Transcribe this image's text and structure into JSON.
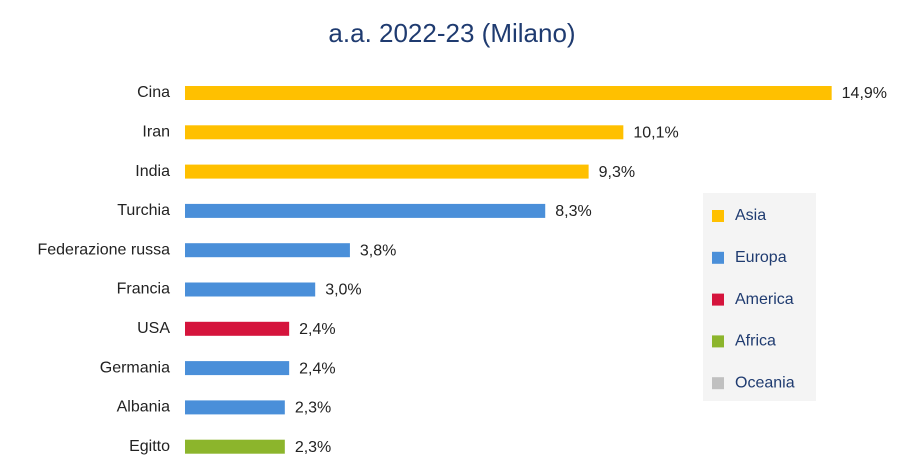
{
  "chart_data": {
    "type": "bar",
    "orientation": "horizontal",
    "title": "a.a. 2022-23 (Milano)",
    "categories": [
      "Cina",
      "Iran",
      "India",
      "Turchia",
      "Federazione russa",
      "Francia",
      "USA",
      "Germania",
      "Albania",
      "Egitto"
    ],
    "series": [
      {
        "name": "Asia",
        "color": "#ffc000",
        "values": [
          14.9,
          10.1,
          9.3,
          null,
          null,
          null,
          null,
          null,
          null,
          null
        ],
        "value_labels": [
          "14,9%",
          "10,1%",
          "9,3%",
          null,
          null,
          null,
          null,
          null,
          null,
          null
        ]
      },
      {
        "name": "Europa",
        "color": "#4a8fd9",
        "values": [
          null,
          null,
          null,
          8.3,
          3.8,
          3.0,
          null,
          2.4,
          2.3,
          null
        ],
        "value_labels": [
          null,
          null,
          null,
          "8,3%",
          "3,8%",
          "3,0%",
          null,
          "2,4%",
          "2,3%",
          null
        ]
      },
      {
        "name": "America",
        "color": "#d5143c",
        "values": [
          null,
          null,
          null,
          null,
          null,
          null,
          2.4,
          null,
          null,
          null
        ],
        "value_labels": [
          null,
          null,
          null,
          null,
          null,
          null,
          "2,4%",
          null,
          null,
          null
        ]
      },
      {
        "name": "Africa",
        "color": "#8cb52c",
        "values": [
          null,
          null,
          null,
          null,
          null,
          null,
          null,
          null,
          null,
          2.3
        ],
        "value_labels": [
          null,
          null,
          null,
          null,
          null,
          null,
          null,
          null,
          null,
          "2,3%"
        ]
      },
      {
        "name": "Oceania",
        "color": "#c0c0c0",
        "values": [
          null,
          null,
          null,
          null,
          null,
          null,
          null,
          null,
          null,
          null
        ],
        "value_labels": [
          null,
          null,
          null,
          null,
          null,
          null,
          null,
          null,
          null,
          null
        ]
      }
    ],
    "xlim": [
      0,
      15
    ],
    "legend": "right"
  }
}
